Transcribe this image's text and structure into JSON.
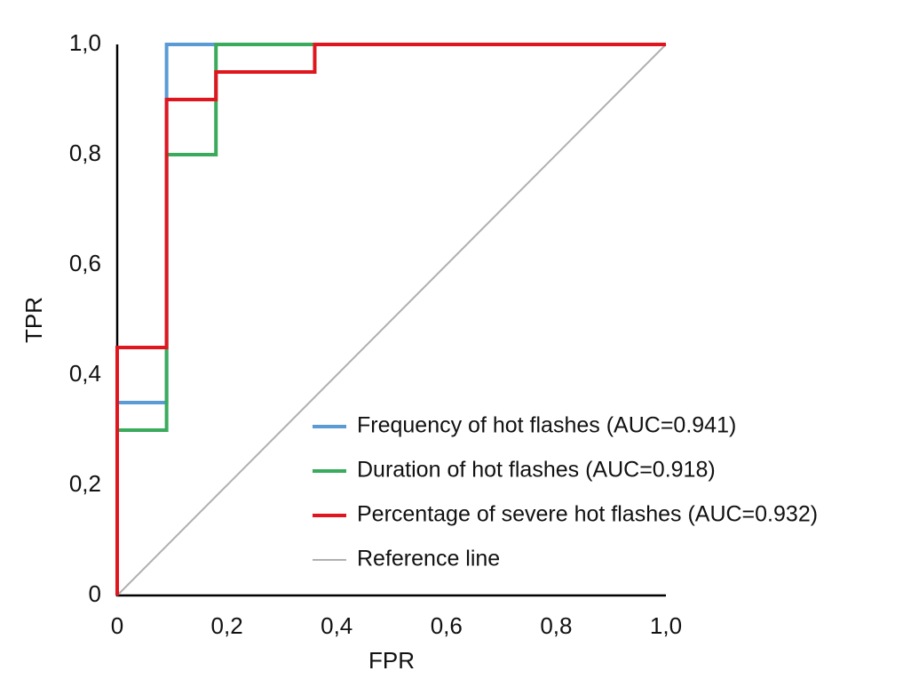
{
  "chart_data": {
    "type": "line",
    "xlabel": "FPR",
    "ylabel": "TPR",
    "xlim": [
      0,
      1
    ],
    "ylim": [
      0,
      1
    ],
    "xticks": [
      0,
      {
        "value": 0.2,
        "label": "0,2"
      },
      {
        "value": 0.4,
        "label": "0,4"
      },
      {
        "value": 0.6,
        "label": "0,6"
      },
      {
        "value": 0.8,
        "label": "0,8"
      },
      {
        "value": 1,
        "label": "1,0"
      }
    ],
    "yticks": [
      0,
      {
        "value": 0.2,
        "label": "0,2"
      },
      {
        "value": 0.4,
        "label": "0,4"
      },
      {
        "value": 0.6,
        "label": "0,6"
      },
      {
        "value": 0.8,
        "label": "0,8"
      },
      {
        "value": 1,
        "label": "1,0"
      }
    ],
    "grid": false,
    "legend": "lower right",
    "series": [
      {
        "name": "Frequency of hot flashes (AUC=0.941)",
        "color": "#5b9bd5",
        "x": [
          0,
          0,
          0.09,
          0.09,
          1
        ],
        "values": [
          0,
          0.35,
          0.35,
          1,
          1
        ]
      },
      {
        "name": "Duration of hot flashes (AUC=0.918)",
        "color": "#3aaa5c",
        "x": [
          0,
          0,
          0.09,
          0.09,
          0.18,
          0.18,
          1
        ],
        "values": [
          0,
          0.3,
          0.3,
          0.8,
          0.8,
          1,
          1
        ]
      },
      {
        "name": "Percentage of severe hot flashes (AUC=0.932)",
        "color": "#e0161e",
        "x": [
          0,
          0,
          0.09,
          0.09,
          0.18,
          0.18,
          0.36,
          0.36,
          1
        ],
        "values": [
          0,
          0.45,
          0.45,
          0.9,
          0.9,
          0.95,
          0.95,
          1,
          1
        ]
      },
      {
        "name": "Reference line",
        "color": "#b0b0b0",
        "x": [
          0,
          1
        ],
        "values": [
          0,
          1
        ]
      }
    ]
  }
}
